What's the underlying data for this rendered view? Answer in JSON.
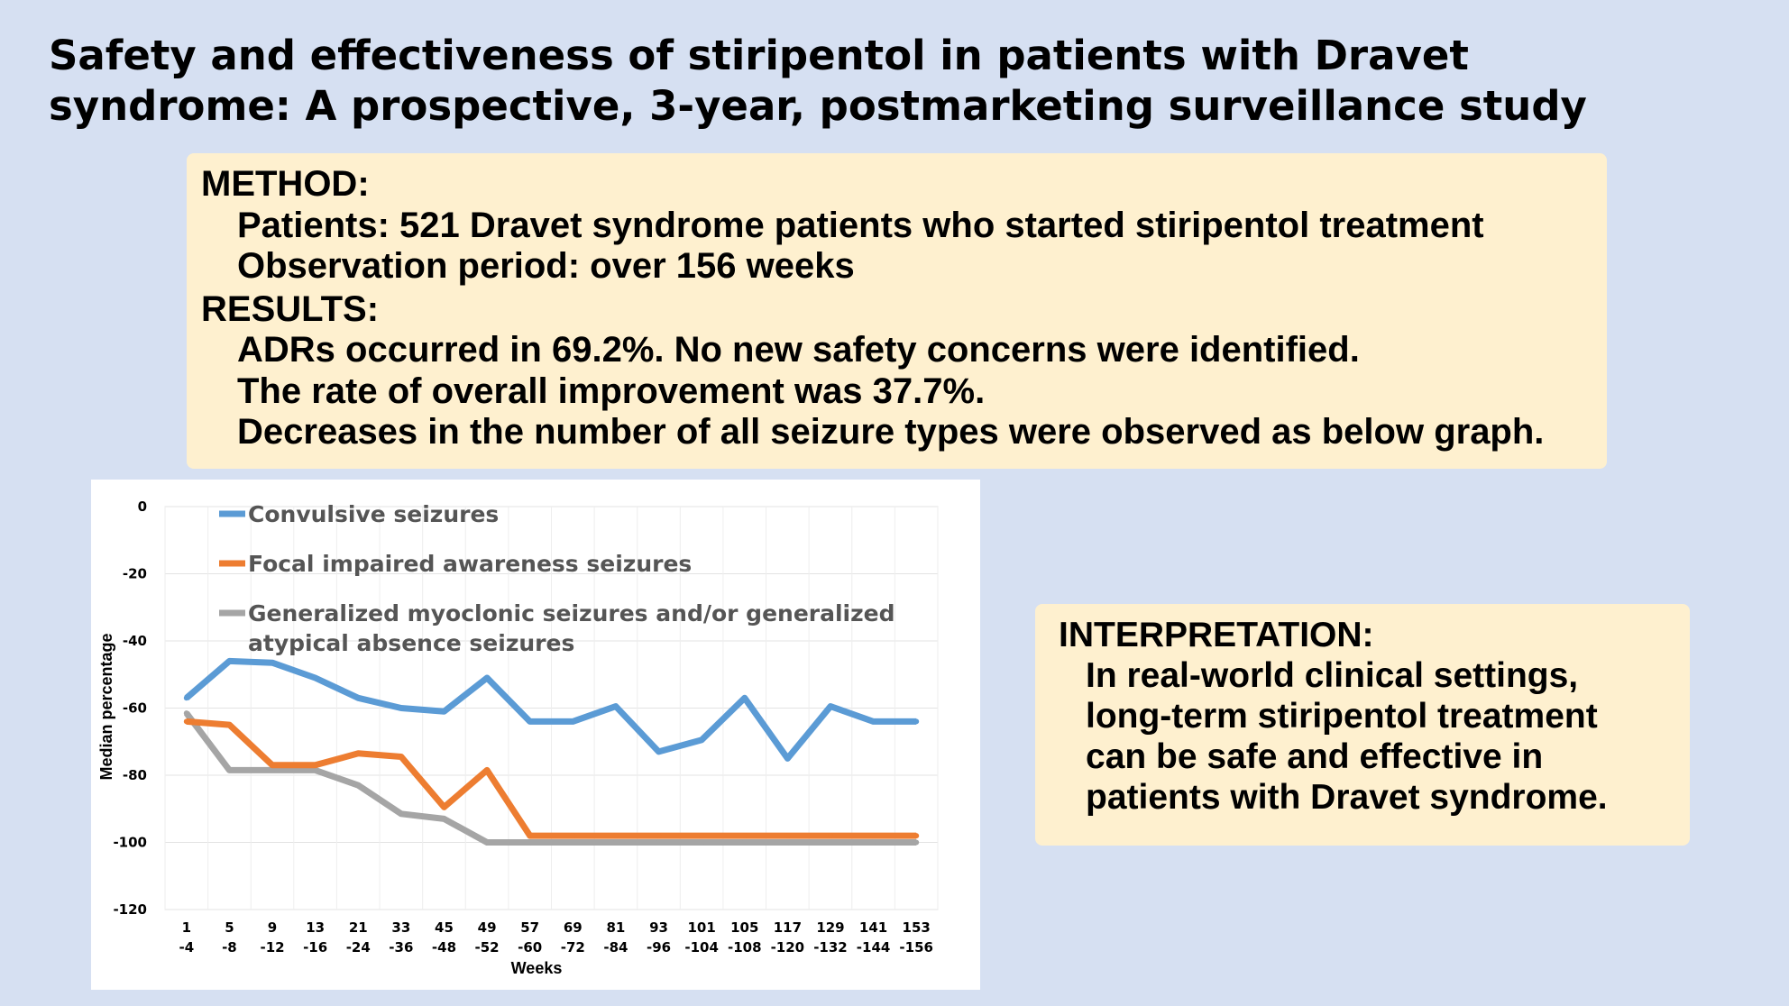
{
  "title": {
    "line1": "Safety and effectiveness of stiripentol in patients with Dravet",
    "line2": "syndrome: A prospective, 3-year, postmarketing surveillance study"
  },
  "method_box": {
    "method_heading": "METHOD:",
    "patients": "Patients: 521 Dravet syndrome patients who started stiripentol treatment",
    "observation": "Observation period: over 156 weeks",
    "results_heading": "RESULTS:",
    "result1": "ADRs occurred in 69.2%. No new safety concerns were identified.",
    "result2": "The rate of overall improvement was 37.7%.",
    "result3": "Decreases in the number of all seizure types were observed as below graph."
  },
  "interpretation_box": {
    "heading": "INTERPRETATION:",
    "lines": [
      "In real-world clinical settings,",
      "long-term stiripentol treatment",
      "can be safe and effective in",
      "patients with Dravet syndrome."
    ]
  },
  "colors": {
    "background": "#d6e0f2",
    "box": "#fef0cf",
    "convulsive": "#5b9bd5",
    "focal": "#ed7d31",
    "myoclonic": "#a5a5a5"
  },
  "chart_data": {
    "type": "line",
    "xlabel": "Weeks",
    "ylabel": "Median percentage",
    "ylim": [
      -120,
      0
    ],
    "yticks": [
      0,
      -20,
      -40,
      -60,
      -80,
      -100,
      -120
    ],
    "grid": true,
    "legend_position": "top-left inside plot",
    "categories": [
      [
        "1",
        "-4"
      ],
      [
        "5",
        "-8"
      ],
      [
        "9",
        "-12"
      ],
      [
        "13",
        "-16"
      ],
      [
        "21",
        "-24"
      ],
      [
        "33",
        "-36"
      ],
      [
        "45",
        "-48"
      ],
      [
        "49",
        "-52"
      ],
      [
        "57",
        "-60"
      ],
      [
        "69",
        "-72"
      ],
      [
        "81",
        "-84"
      ],
      [
        "93",
        "-96"
      ],
      [
        "101",
        "-104"
      ],
      [
        "105",
        "-108"
      ],
      [
        "117",
        "-120"
      ],
      [
        "129",
        "-132"
      ],
      [
        "141",
        "-144"
      ],
      [
        "153",
        "-156"
      ]
    ],
    "series": [
      {
        "name": "Convulsive seizures",
        "legend_lines": [
          "Convulsive seizures"
        ],
        "color": "#5b9bd5",
        "values": [
          -57,
          -46,
          -46.5,
          -51,
          -57,
          -60,
          -61,
          -51,
          -64,
          -64,
          -59.5,
          -73,
          -69.5,
          -57,
          -75,
          -59.5,
          -64,
          -64
        ]
      },
      {
        "name": "Focal impaired awareness seizures",
        "legend_lines": [
          "Focal impaired awareness seizures"
        ],
        "color": "#ed7d31",
        "values": [
          -64,
          -65,
          -77,
          -77,
          -73.5,
          -74.5,
          -89.5,
          -78.5,
          -98,
          -98,
          -98,
          -98,
          -98,
          -98,
          -98,
          -98,
          -98,
          -98
        ]
      },
      {
        "name": "Generalized myoclonic seizures and/or generalized atypical absence seizures",
        "legend_lines": [
          "Generalized myoclonic seizures and/or generalized",
          "atypical absence seizures"
        ],
        "color": "#a5a5a5",
        "values": [
          -61.5,
          -78.5,
          -78.5,
          -78.5,
          -83,
          -91.5,
          -93,
          -100,
          -100,
          -100,
          -100,
          -100,
          -100,
          -100,
          -100,
          -100,
          -100,
          -100
        ]
      }
    ]
  }
}
